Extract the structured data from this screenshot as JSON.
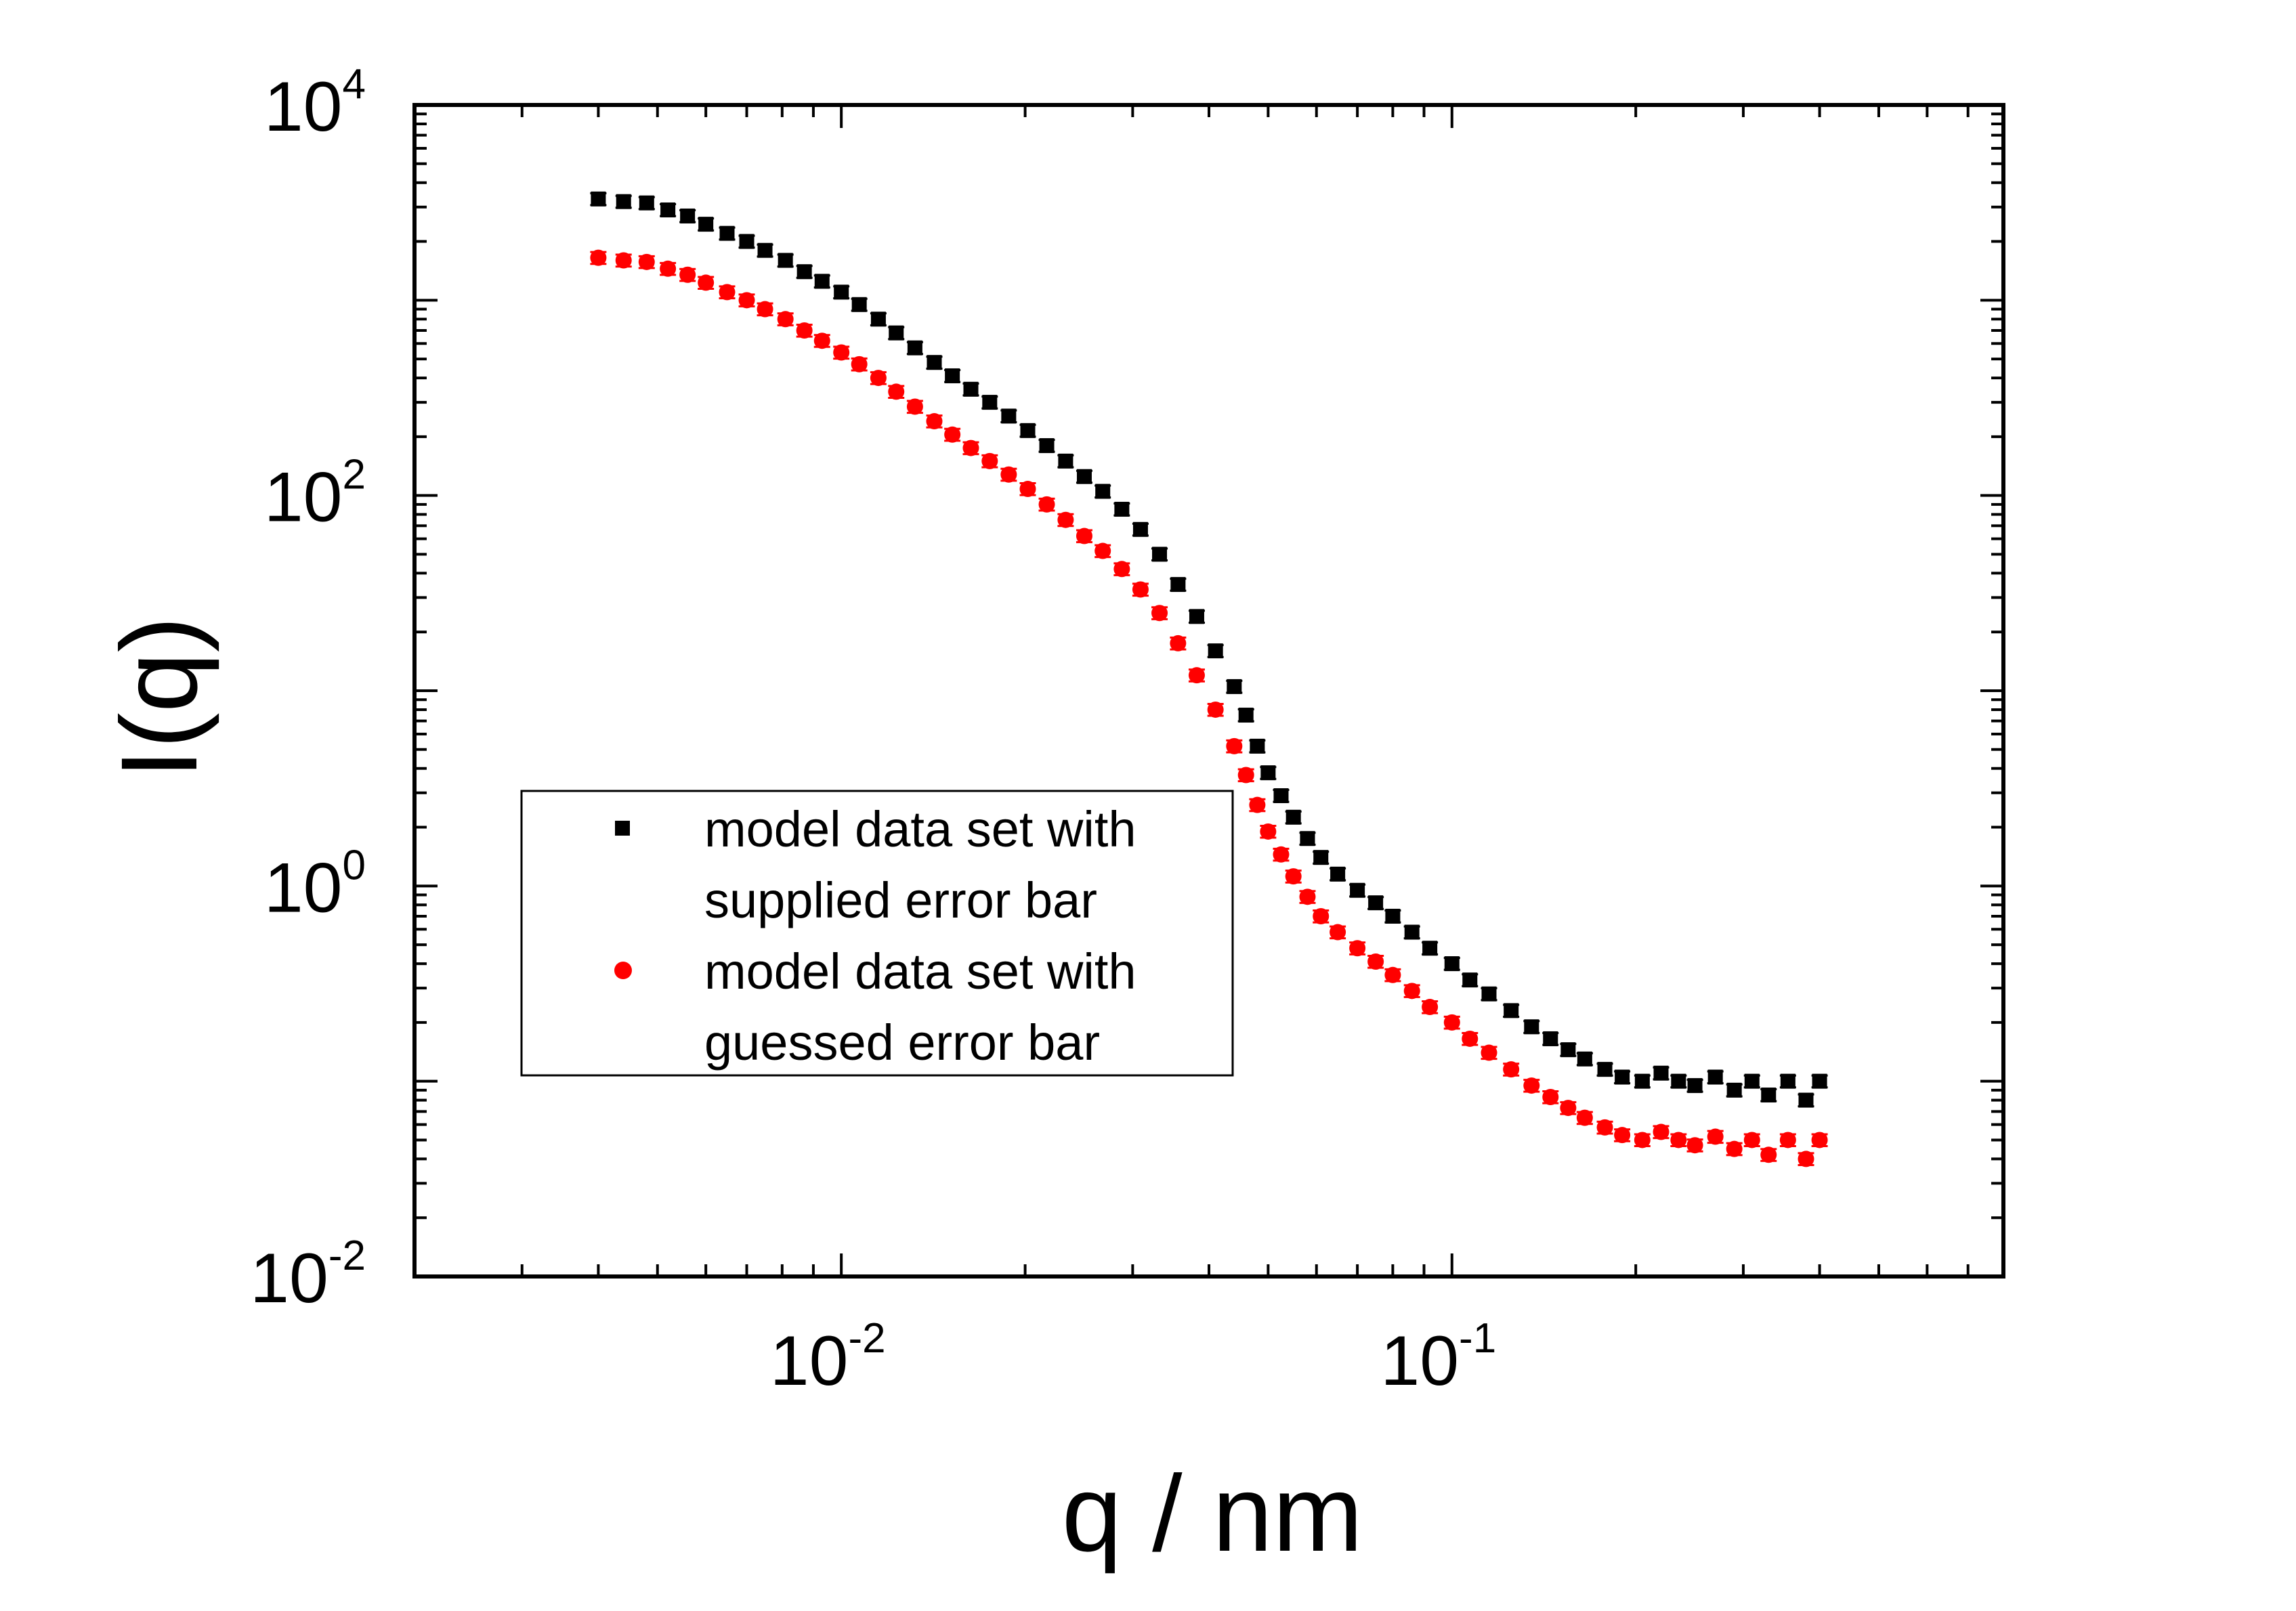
{
  "chart_data": {
    "type": "scatter",
    "xlabel": "q / nm",
    "ylabel": "I(q)",
    "xscale": "log",
    "yscale": "log",
    "xlim": [
      0.002,
      0.8
    ],
    "ylim": [
      0.01,
      10000
    ],
    "x_ticks": [
      {
        "base": "10",
        "exp": "-2",
        "value": 0.01
      },
      {
        "base": "10",
        "exp": "-1",
        "value": 0.1
      }
    ],
    "y_ticks": [
      {
        "base": "10",
        "exp": "-2",
        "value": 0.01
      },
      {
        "base": "10",
        "exp": "0",
        "value": 1
      },
      {
        "base": "10",
        "exp": "2",
        "value": 100
      },
      {
        "base": "10",
        "exp": "4",
        "value": 10000
      }
    ],
    "grid": false,
    "legend_position": "center-left",
    "series": [
      {
        "name": "model data set with supplied error bar",
        "legend_lines": [
          "model data set with",
          "supplied error bar"
        ],
        "marker": "square",
        "color": "#000000",
        "points": [
          [
            0.004,
            3300
          ],
          [
            0.0044,
            3200
          ],
          [
            0.0048,
            3150
          ],
          [
            0.0052,
            2900
          ],
          [
            0.0056,
            2700
          ],
          [
            0.006,
            2450
          ],
          [
            0.0065,
            2200
          ],
          [
            0.007,
            2000
          ],
          [
            0.0075,
            1800
          ],
          [
            0.0081,
            1600
          ],
          [
            0.0087,
            1400
          ],
          [
            0.0093,
            1250
          ],
          [
            0.01,
            1100
          ],
          [
            0.0107,
            950
          ],
          [
            0.0115,
            800
          ],
          [
            0.0123,
            680
          ],
          [
            0.0132,
            570
          ],
          [
            0.0142,
            480
          ],
          [
            0.0152,
            410
          ],
          [
            0.0163,
            350
          ],
          [
            0.0175,
            300
          ],
          [
            0.0188,
            255
          ],
          [
            0.0202,
            215
          ],
          [
            0.0217,
            180
          ],
          [
            0.0233,
            150
          ],
          [
            0.025,
            125
          ],
          [
            0.0268,
            105
          ],
          [
            0.0288,
            85
          ],
          [
            0.0309,
            67
          ],
          [
            0.0332,
            50
          ],
          [
            0.0356,
            35
          ],
          [
            0.0382,
            24
          ],
          [
            0.041,
            16
          ],
          [
            0.044,
            10.5
          ],
          [
            0.046,
            7.5
          ],
          [
            0.048,
            5.2
          ],
          [
            0.05,
            3.8
          ],
          [
            0.0525,
            2.9
          ],
          [
            0.055,
            2.25
          ],
          [
            0.058,
            1.75
          ],
          [
            0.061,
            1.4
          ],
          [
            0.065,
            1.15
          ],
          [
            0.07,
            0.95
          ],
          [
            0.075,
            0.82
          ],
          [
            0.08,
            0.7
          ],
          [
            0.086,
            0.58
          ],
          [
            0.092,
            0.48
          ],
          [
            0.1,
            0.4
          ],
          [
            0.107,
            0.33
          ],
          [
            0.115,
            0.28
          ],
          [
            0.125,
            0.23
          ],
          [
            0.135,
            0.19
          ],
          [
            0.145,
            0.165
          ],
          [
            0.155,
            0.145
          ],
          [
            0.165,
            0.13
          ],
          [
            0.178,
            0.115
          ],
          [
            0.19,
            0.105
          ],
          [
            0.205,
            0.1
          ],
          [
            0.22,
            0.11
          ],
          [
            0.235,
            0.1
          ],
          [
            0.25,
            0.095
          ],
          [
            0.27,
            0.105
          ],
          [
            0.29,
            0.09
          ],
          [
            0.31,
            0.1
          ],
          [
            0.33,
            0.085
          ],
          [
            0.355,
            0.1
          ],
          [
            0.38,
            0.08
          ],
          [
            0.4,
            0.1
          ]
        ]
      },
      {
        "name": "model data set with guessed error bar",
        "legend_lines": [
          "model data set with",
          "guessed error bar"
        ],
        "marker": "circle",
        "color": "#ff0000",
        "points": [
          [
            0.004,
            1650
          ],
          [
            0.0044,
            1600
          ],
          [
            0.0048,
            1570
          ],
          [
            0.0052,
            1450
          ],
          [
            0.0056,
            1350
          ],
          [
            0.006,
            1230
          ],
          [
            0.0065,
            1100
          ],
          [
            0.007,
            1000
          ],
          [
            0.0075,
            900
          ],
          [
            0.0081,
            800
          ],
          [
            0.0087,
            700
          ],
          [
            0.0093,
            620
          ],
          [
            0.01,
            540
          ],
          [
            0.0107,
            470
          ],
          [
            0.0115,
            400
          ],
          [
            0.0123,
            340
          ],
          [
            0.0132,
            285
          ],
          [
            0.0142,
            240
          ],
          [
            0.0152,
            205
          ],
          [
            0.0163,
            175
          ],
          [
            0.0175,
            150
          ],
          [
            0.0188,
            128
          ],
          [
            0.0202,
            108
          ],
          [
            0.0217,
            90
          ],
          [
            0.0233,
            75
          ],
          [
            0.025,
            62
          ],
          [
            0.0268,
            52
          ],
          [
            0.0288,
            42
          ],
          [
            0.0309,
            33
          ],
          [
            0.0332,
            25
          ],
          [
            0.0356,
            17.5
          ],
          [
            0.0382,
            12
          ],
          [
            0.041,
            8
          ],
          [
            0.044,
            5.2
          ],
          [
            0.046,
            3.7
          ],
          [
            0.048,
            2.6
          ],
          [
            0.05,
            1.9
          ],
          [
            0.0525,
            1.45
          ],
          [
            0.055,
            1.12
          ],
          [
            0.058,
            0.88
          ],
          [
            0.061,
            0.7
          ],
          [
            0.065,
            0.58
          ],
          [
            0.07,
            0.48
          ],
          [
            0.075,
            0.41
          ],
          [
            0.08,
            0.35
          ],
          [
            0.086,
            0.29
          ],
          [
            0.092,
            0.24
          ],
          [
            0.1,
            0.2
          ],
          [
            0.107,
            0.165
          ],
          [
            0.115,
            0.14
          ],
          [
            0.125,
            0.115
          ],
          [
            0.135,
            0.095
          ],
          [
            0.145,
            0.083
          ],
          [
            0.155,
            0.073
          ],
          [
            0.165,
            0.065
          ],
          [
            0.178,
            0.058
          ],
          [
            0.19,
            0.053
          ],
          [
            0.205,
            0.05
          ],
          [
            0.22,
            0.055
          ],
          [
            0.235,
            0.05
          ],
          [
            0.25,
            0.047
          ],
          [
            0.27,
            0.052
          ],
          [
            0.29,
            0.045
          ],
          [
            0.31,
            0.05
          ],
          [
            0.33,
            0.042
          ],
          [
            0.355,
            0.05
          ],
          [
            0.38,
            0.04
          ],
          [
            0.4,
            0.05
          ]
        ]
      }
    ]
  }
}
